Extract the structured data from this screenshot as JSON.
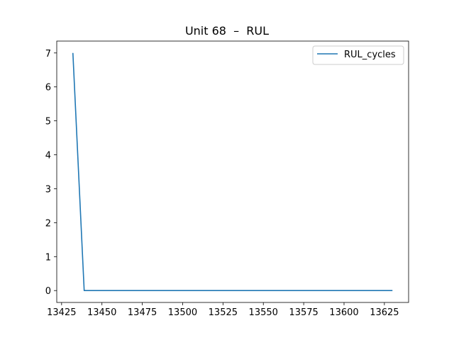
{
  "chart_data": {
    "type": "line",
    "title": "Unit 68  –  RUL",
    "xlabel": "",
    "ylabel": "",
    "xlim": [
      13422,
      13640
    ],
    "ylim": [
      -0.35,
      7.35
    ],
    "xticks": [
      13425,
      13450,
      13475,
      13500,
      13525,
      13550,
      13575,
      13600,
      13625
    ],
    "yticks": [
      0,
      1,
      2,
      3,
      4,
      5,
      6,
      7
    ],
    "grid": false,
    "legend_position": "upper right",
    "series": [
      {
        "name": "RUL_cycles",
        "color": "#1f77b4",
        "x": [
          13432,
          13439,
          13630
        ],
        "y": [
          7,
          0,
          0
        ]
      }
    ]
  }
}
